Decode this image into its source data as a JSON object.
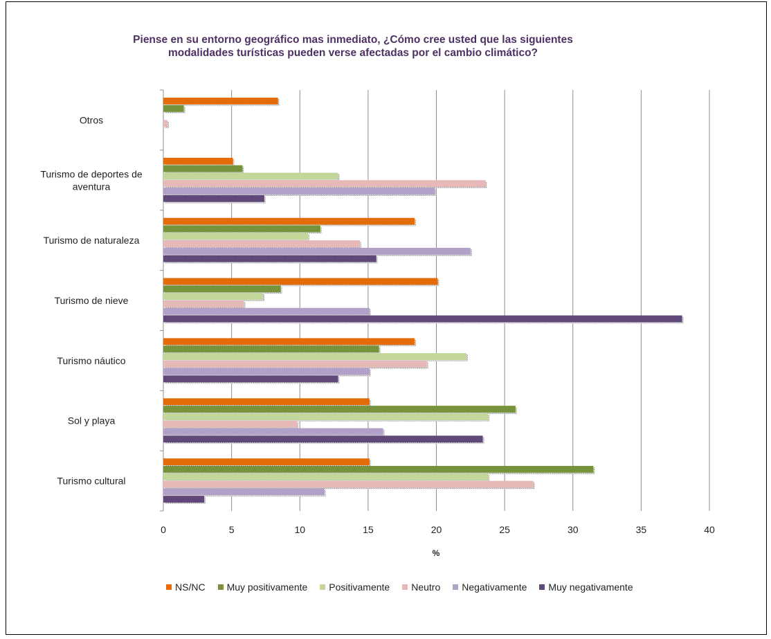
{
  "chart_data": {
    "type": "bar",
    "orientation": "horizontal",
    "title_lines": [
      "Piense en su entorno geográfico mas inmediato, ¿Cómo cree usted que las siguientes",
      "modalidades turísticas pueden verse afectadas por el cambio climático?"
    ],
    "xlabel": "%",
    "xlim": [
      0,
      40
    ],
    "xticks": [
      0,
      5,
      10,
      15,
      20,
      25,
      30,
      35,
      40
    ],
    "grid": "vertical",
    "legend_position": "bottom",
    "categories": [
      {
        "lines": [
          "Otros"
        ]
      },
      {
        "lines": [
          "Turismo de deportes de",
          "aventura"
        ]
      },
      {
        "lines": [
          "Turismo de naturaleza"
        ]
      },
      {
        "lines": [
          "Turismo de nieve"
        ]
      },
      {
        "lines": [
          "Turismo náutico"
        ]
      },
      {
        "lines": [
          "Sol y playa"
        ]
      },
      {
        "lines": [
          "Turismo cultural"
        ]
      }
    ],
    "series": [
      {
        "name": "NS/NC",
        "color": "#e36c09",
        "values": [
          8.4,
          5.1,
          18.4,
          20.1,
          18.4,
          15.1,
          15.1
        ]
      },
      {
        "name": "Muy positivamente",
        "color": "#76933c",
        "values": [
          1.5,
          5.8,
          11.5,
          8.6,
          15.8,
          25.8,
          31.5
        ]
      },
      {
        "name": "Positivamente",
        "color": "#c4d79b",
        "values": [
          0,
          12.8,
          10.6,
          7.3,
          22.2,
          23.8,
          23.8
        ]
      },
      {
        "name": "Neutro",
        "color": "#e6b8b7",
        "values": [
          0.3,
          23.6,
          14.4,
          5.9,
          19.3,
          9.8,
          27.1
        ]
      },
      {
        "name": "Negativamente",
        "color": "#b1a0c7",
        "values": [
          0,
          19.9,
          22.5,
          15.1,
          15.1,
          16.1,
          11.8
        ]
      },
      {
        "name": "Muy negativamente",
        "color": "#60497a",
        "values": [
          0,
          7.4,
          15.6,
          38.0,
          12.8,
          23.4,
          3.0
        ]
      }
    ]
  }
}
